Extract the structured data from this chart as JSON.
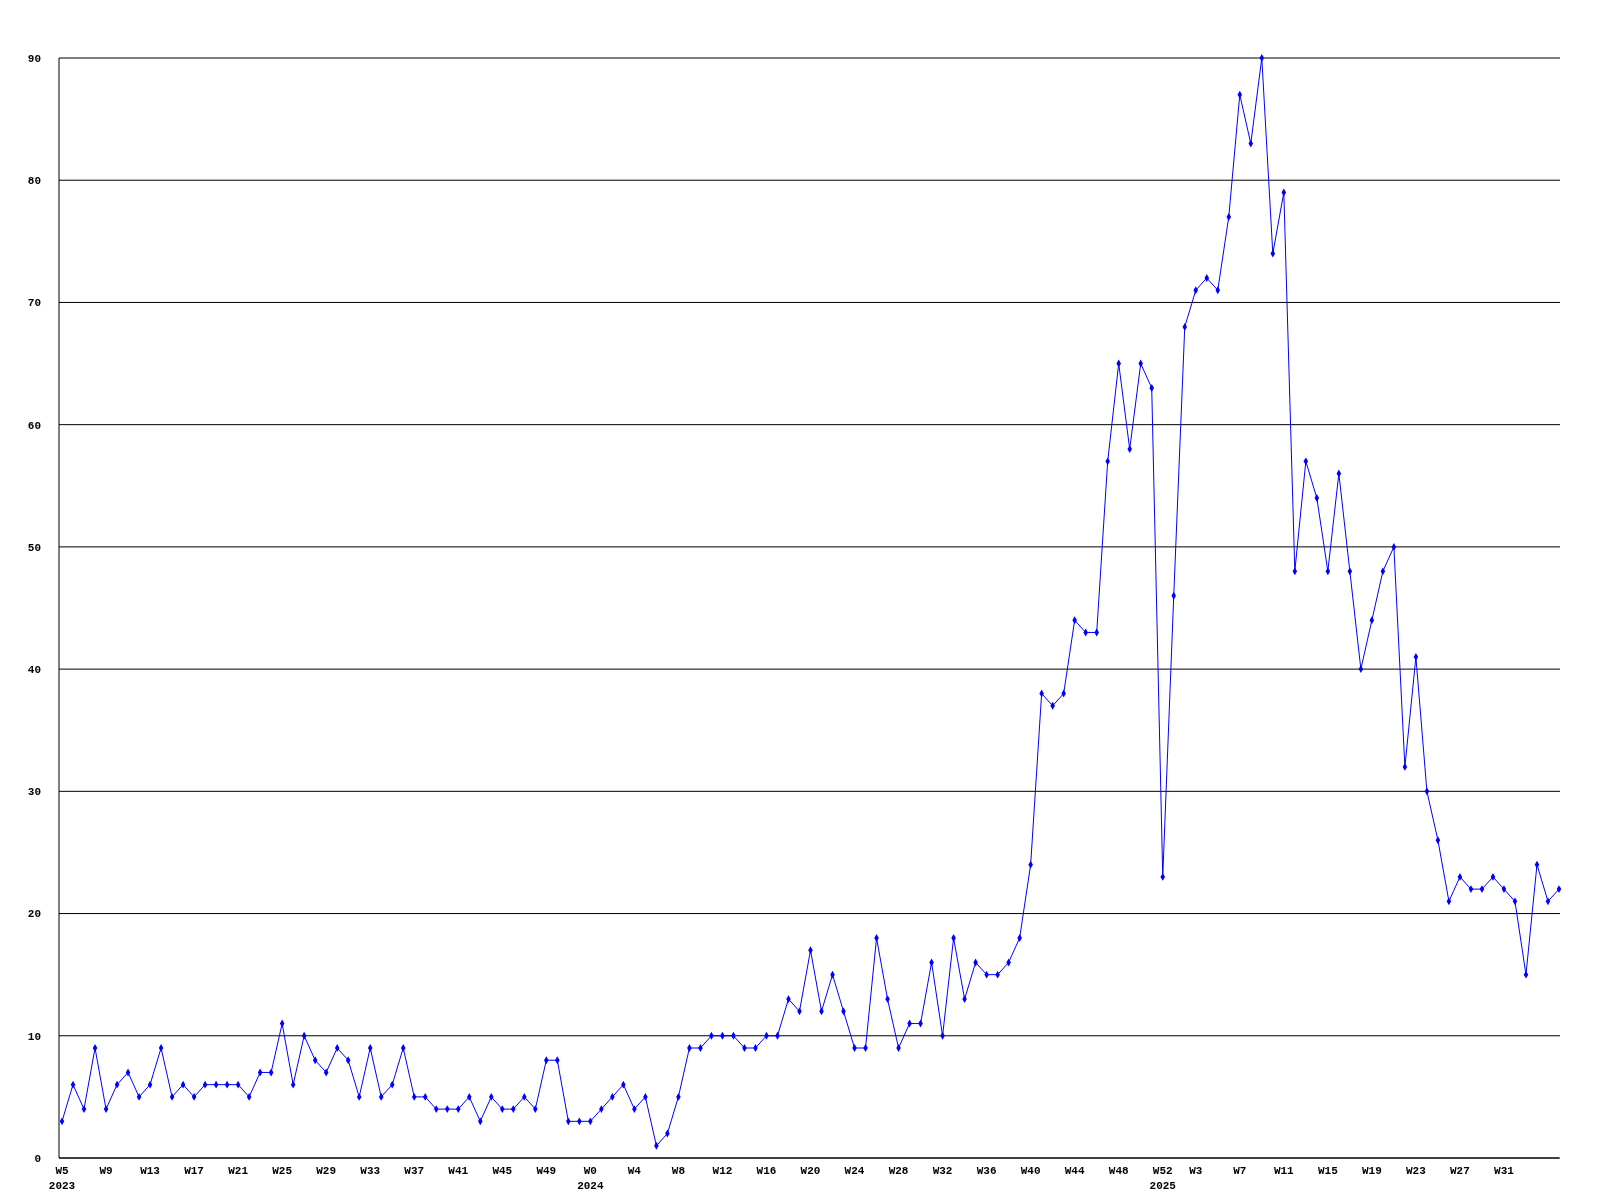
{
  "chart_data": {
    "type": "line",
    "categories": [
      "W5\n2023",
      null,
      null,
      null,
      "W9",
      null,
      null,
      null,
      "W13",
      null,
      null,
      null,
      "W17",
      null,
      null,
      null,
      "W21",
      null,
      null,
      null,
      "W25",
      null,
      null,
      null,
      "W29",
      null,
      null,
      null,
      "W33",
      null,
      null,
      null,
      "W37",
      null,
      null,
      null,
      "W41",
      null,
      null,
      null,
      "W45",
      null,
      null,
      null,
      "W49",
      null,
      null,
      null,
      "W0\n2024",
      null,
      null,
      null,
      "W4",
      null,
      null,
      null,
      "W8",
      null,
      null,
      null,
      "W12",
      null,
      null,
      null,
      "W16",
      null,
      null,
      null,
      "W20",
      null,
      null,
      null,
      "W24",
      null,
      null,
      null,
      "W28",
      null,
      null,
      null,
      "W32",
      null,
      null,
      null,
      "W36",
      null,
      null,
      null,
      "W40",
      null,
      null,
      null,
      "W44",
      null,
      null,
      null,
      "W48",
      null,
      null,
      null,
      "W52\n2025",
      null,
      null,
      "W3",
      null,
      null,
      null,
      "W7",
      null,
      null,
      null,
      "W11",
      null,
      null,
      null,
      "W15",
      null,
      null,
      null,
      "W19",
      null,
      null,
      null,
      "W23",
      null,
      null,
      null,
      "W27",
      null,
      null,
      null,
      "W31",
      null,
      null,
      null,
      null,
      null
    ],
    "series": [
      {
        "color": "#0000ff",
        "values": [
          3,
          6,
          4,
          9,
          4,
          6,
          7,
          5,
          6,
          9,
          5,
          6,
          5,
          6,
          6,
          6,
          6,
          5,
          7,
          7,
          11,
          6,
          10,
          8,
          7,
          9,
          8,
          5,
          9,
          5,
          6,
          9,
          5,
          5,
          4,
          4,
          4,
          5,
          3,
          5,
          4,
          4,
          5,
          4,
          8,
          8,
          3,
          3,
          3,
          4,
          5,
          6,
          4,
          5,
          1,
          2,
          5,
          9,
          9,
          10,
          10,
          10,
          9,
          9,
          10,
          10,
          13,
          12,
          17,
          12,
          15,
          12,
          9,
          9,
          18,
          13,
          9,
          11,
          11,
          16,
          10,
          18,
          13,
          16,
          15,
          15,
          16,
          18,
          24,
          38,
          37,
          38,
          44,
          43,
          43,
          57,
          65,
          58,
          65,
          63,
          23,
          46,
          68,
          71,
          72,
          71,
          77,
          87,
          83,
          90,
          74,
          79,
          48,
          57,
          54,
          48,
          56,
          48,
          40,
          44,
          48,
          50,
          32,
          41,
          30,
          26,
          21,
          23,
          22,
          22,
          23,
          22,
          21,
          15,
          24,
          21,
          22
        ]
      }
    ],
    "ylim": [
      0,
      90
    ],
    "yticks": [
      0,
      10,
      20,
      30,
      40,
      50,
      60,
      70,
      80,
      90
    ],
    "grid": "y",
    "marker": "diamond",
    "line_style": "solid"
  }
}
